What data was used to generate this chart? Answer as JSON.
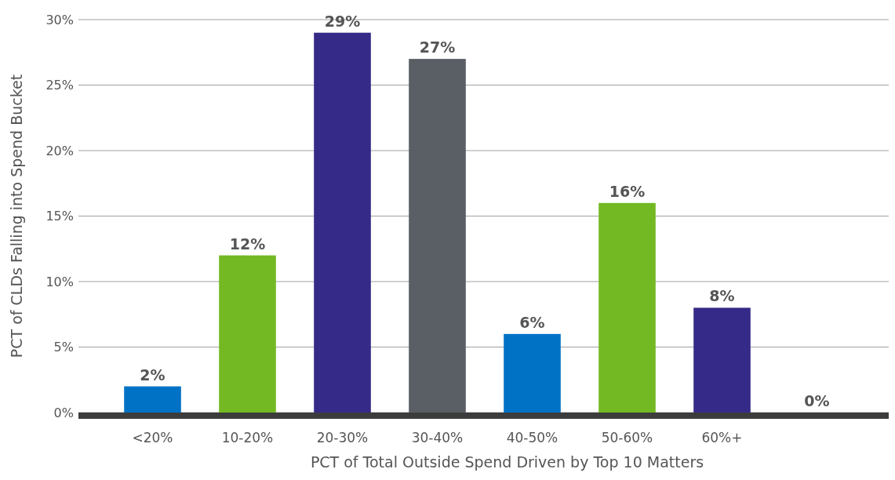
{
  "chart_data": {
    "type": "bar",
    "xlabel": "PCT of Total Outside Spend Driven by Top 10 Matters",
    "ylabel": "PCT of CLDs Falling into Spend Bucket",
    "categories": [
      "<20%",
      "10-20%",
      "20-30%",
      "30-40%",
      "40-50%",
      "50-60%",
      "60%+",
      null
    ],
    "values": [
      2,
      12,
      29,
      27,
      6,
      16,
      8,
      0
    ],
    "colors": [
      "#0072c6",
      "#73b923",
      "#352a87",
      "#5a5f66",
      "#0072c6",
      "#73b923",
      "#352a87",
      "#352a87"
    ],
    "value_labels": [
      "2%",
      "12%",
      "29%",
      "27%",
      "6%",
      "16%",
      "8%",
      "0%"
    ],
    "ylim": [
      0,
      30
    ],
    "yticks": [
      {
        "value": 0,
        "label": "0%"
      },
      {
        "value": 5,
        "label": "5%"
      },
      {
        "value": 10,
        "label": "10%"
      },
      {
        "value": 15,
        "label": "15%"
      },
      {
        "value": 20,
        "label": "20%"
      },
      {
        "value": 25,
        "label": "25%"
      },
      {
        "value": 30,
        "label": "30%"
      }
    ],
    "grid": "y"
  }
}
